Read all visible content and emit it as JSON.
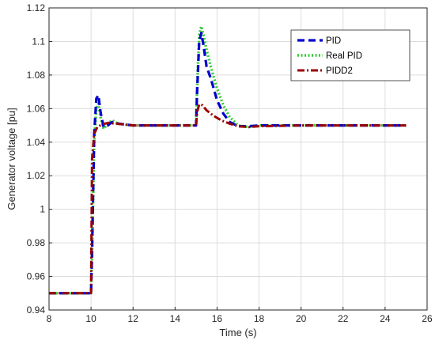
{
  "chart_data": {
    "type": "line",
    "title": "",
    "xlabel": "Time (s)",
    "ylabel": "Generator voltage [pu]",
    "xlim": [
      8,
      26
    ],
    "ylim": [
      0.94,
      1.12
    ],
    "xticks": [
      "8",
      "10",
      "12",
      "14",
      "16",
      "18",
      "20",
      "22",
      "24",
      "26"
    ],
    "yticks": [
      "0.94",
      "0.96",
      "0.98",
      "1",
      "1.02",
      "1.04",
      "1.06",
      "1.08",
      "1.1",
      "1.12"
    ],
    "grid": true,
    "legend_position": "top-right",
    "series": [
      {
        "name": "PID",
        "color": "#0000cc",
        "style": "dashed",
        "x": [
          8,
          10,
          10.05,
          10.15,
          10.25,
          10.35,
          10.45,
          10.6,
          10.8,
          11.0,
          11.3,
          12,
          13,
          14,
          15,
          15.05,
          15.15,
          15.25,
          15.35,
          15.5,
          15.7,
          16.0,
          16.3,
          16.6,
          17.0,
          17.5,
          18,
          20,
          22,
          24,
          25
        ],
        "y": [
          0.95,
          0.95,
          0.975,
          1.045,
          1.066,
          1.068,
          1.058,
          1.049,
          1.05,
          1.052,
          1.051,
          1.05,
          1.05,
          1.05,
          1.05,
          1.07,
          1.1,
          1.105,
          1.098,
          1.085,
          1.078,
          1.065,
          1.057,
          1.052,
          1.0495,
          1.0495,
          1.05,
          1.05,
          1.05,
          1.05,
          1.05
        ]
      },
      {
        "name": "Real PID",
        "color": "#33cc33",
        "style": "dotted",
        "x": [
          8,
          10,
          10.05,
          10.15,
          10.25,
          10.35,
          10.45,
          10.6,
          10.8,
          11.0,
          11.3,
          12,
          13,
          14,
          15,
          15.05,
          15.15,
          15.25,
          15.35,
          15.5,
          15.7,
          16.0,
          16.3,
          16.6,
          17.0,
          17.5,
          18,
          20,
          22,
          24,
          25
        ],
        "y": [
          0.95,
          0.95,
          0.972,
          1.04,
          1.06,
          1.063,
          1.055,
          1.048,
          1.051,
          1.053,
          1.051,
          1.05,
          1.05,
          1.05,
          1.05,
          1.072,
          1.104,
          1.109,
          1.104,
          1.095,
          1.085,
          1.072,
          1.062,
          1.055,
          1.05,
          1.049,
          1.05,
          1.05,
          1.05,
          1.05,
          1.05
        ]
      },
      {
        "name": "PIDD2",
        "color": "#990000",
        "style": "dashdot",
        "x": [
          8,
          10,
          10.05,
          10.15,
          10.3,
          10.5,
          10.8,
          11.2,
          12,
          13,
          14,
          15,
          15.05,
          15.15,
          15.3,
          15.5,
          15.8,
          16.2,
          16.6,
          17.0,
          17.5,
          18,
          20,
          22,
          24,
          25
        ],
        "y": [
          0.95,
          0.95,
          1.03,
          1.045,
          1.049,
          1.0505,
          1.0515,
          1.051,
          1.05,
          1.05,
          1.05,
          1.05,
          1.058,
          1.0625,
          1.062,
          1.059,
          1.056,
          1.053,
          1.051,
          1.0495,
          1.049,
          1.0495,
          1.05,
          1.05,
          1.05,
          1.05
        ]
      }
    ]
  }
}
